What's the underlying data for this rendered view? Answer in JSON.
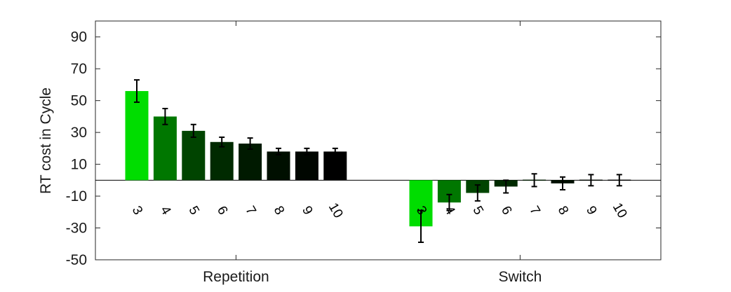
{
  "chart_data": {
    "type": "bar",
    "ylabel": "RT cost in Cycle",
    "ylim": [
      -50,
      100
    ],
    "yticks": [
      -50,
      -30,
      -10,
      10,
      30,
      50,
      70,
      90
    ],
    "groups": [
      "Repetition",
      "Switch"
    ],
    "categories": [
      "3",
      "4",
      "5",
      "6",
      "7",
      "8",
      "9",
      "10"
    ],
    "bar_colors": [
      "#00dd00",
      "#007700",
      "#004400",
      "#002a00",
      "#001a00",
      "#000f00",
      "#000600",
      "#000000"
    ],
    "series": [
      {
        "group": "Repetition",
        "values": [
          56,
          40,
          31,
          24,
          23,
          18,
          18,
          18
        ],
        "errors": [
          7,
          5,
          4,
          3,
          3.5,
          2,
          2,
          2
        ]
      },
      {
        "group": "Switch",
        "values": [
          -29,
          -14,
          -8,
          -4,
          0,
          -2,
          0,
          0
        ],
        "errors": [
          10,
          5,
          5,
          4,
          4,
          4,
          3.5,
          3.5
        ]
      }
    ],
    "grid": false
  }
}
